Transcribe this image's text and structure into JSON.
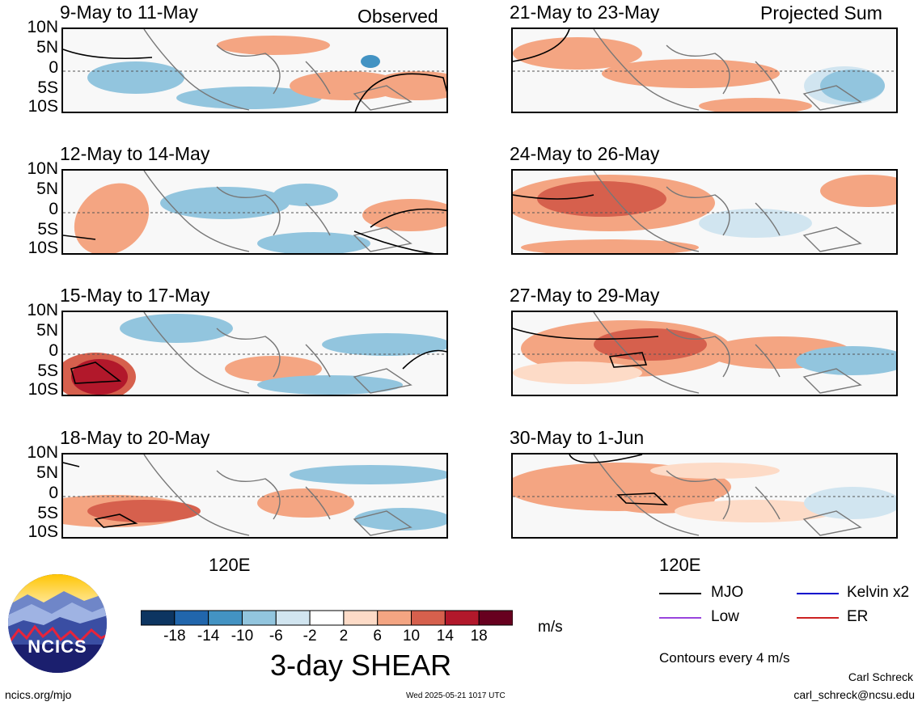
{
  "header": {
    "observed_label": "Observed",
    "projected_label": "Projected Sum"
  },
  "panels": [
    {
      "title": "9-May to 11-May",
      "column": "left"
    },
    {
      "title": "12-May to 14-May",
      "column": "left"
    },
    {
      "title": "15-May to 17-May",
      "column": "left"
    },
    {
      "title": "18-May to 20-May",
      "column": "left"
    },
    {
      "title": "21-May to 23-May",
      "column": "right"
    },
    {
      "title": "24-May to 26-May",
      "column": "right"
    },
    {
      "title": "27-May to 29-May",
      "column": "right"
    },
    {
      "title": "30-May to 1-Jun",
      "column": "right"
    }
  ],
  "lat_labels": [
    "10N",
    "5N",
    "0",
    "5S",
    "10S"
  ],
  "lon_label": "120E",
  "colorbar": {
    "ticks": [
      "-18",
      "-14",
      "-10",
      "-6",
      "-2",
      "2",
      "6",
      "10",
      "14",
      "18"
    ],
    "colors": [
      "#0d3561",
      "#2166ac",
      "#4393c3",
      "#92c5de",
      "#d1e5f0",
      "#ffffff",
      "#fddbc7",
      "#f4a582",
      "#d6604d",
      "#b2182b",
      "#67001f"
    ],
    "unit": "m/s",
    "title": "3-day SHEAR"
  },
  "legend": {
    "items": [
      {
        "label": "MJO",
        "color": "#000000"
      },
      {
        "label": "Kelvin x2",
        "color": "#0000cc"
      },
      {
        "label": "Low",
        "color": "#9944dd"
      },
      {
        "label": "ER",
        "color": "#cc2222"
      }
    ],
    "note": "Contours every 4 m/s"
  },
  "logo": {
    "text": "NCICS"
  },
  "footer": {
    "url": "ncics.org/mjo",
    "timestamp": "Wed 2025-05-21 1017 UTC",
    "author": "Carl Schreck",
    "email": "carl_schreck@ncsu.edu"
  }
}
